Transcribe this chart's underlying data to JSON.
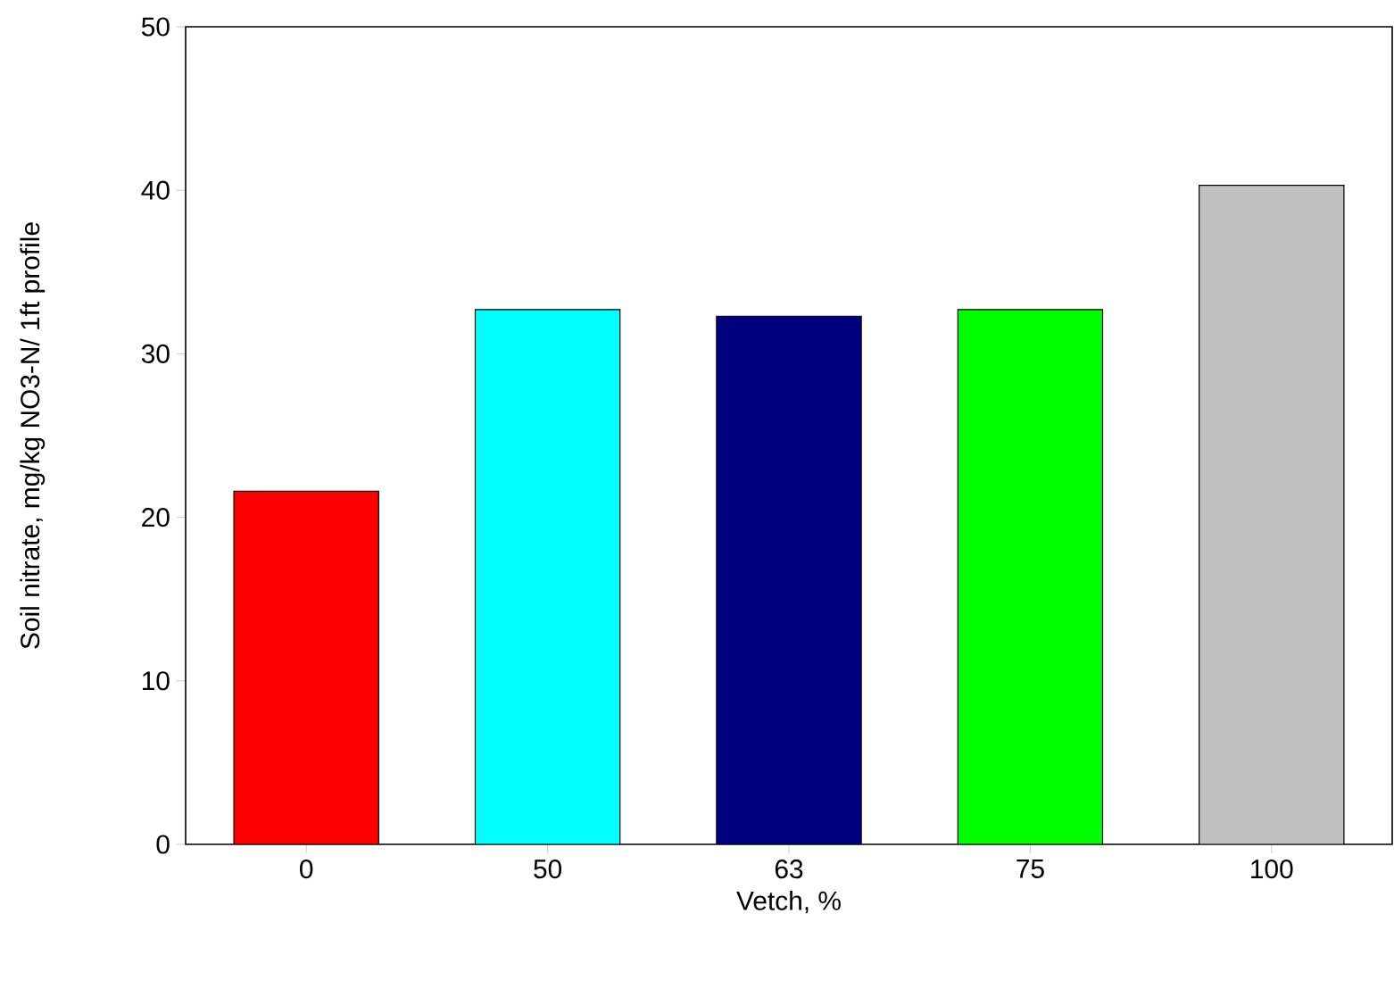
{
  "chart_data": {
    "type": "bar",
    "xlabel": "Vetch, %",
    "ylabel": "Soil nitrate, mg/kg  NO3-N/ 1ft profile",
    "categories": [
      "0",
      "50",
      "63",
      "75",
      "100"
    ],
    "values": [
      21.6,
      32.7,
      32.3,
      32.7,
      40.3
    ],
    "colors": [
      "#ff0000",
      "#00ffff",
      "#000080",
      "#00ff00",
      "#c0c0c0"
    ],
    "ylim": [
      0,
      50
    ],
    "yticks": [
      0,
      10,
      20,
      30,
      40,
      50
    ],
    "grid": false
  }
}
